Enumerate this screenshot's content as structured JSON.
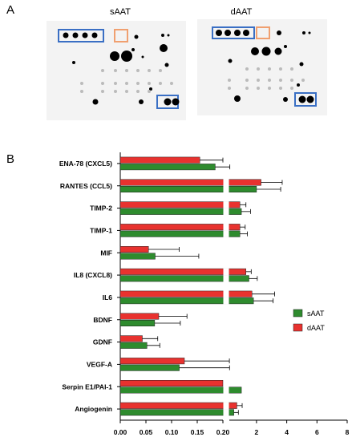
{
  "panel_a_label": "A",
  "panel_b_label": "B",
  "blots": {
    "left_title": "sAAT",
    "right_title": "dAAT",
    "highlight_colors": {
      "blue": "#3a6fc4",
      "orange": "#f0a070"
    }
  },
  "chart_data": {
    "type": "bar",
    "orientation": "horizontal",
    "categories": [
      "ENA-78 (CXCL5)",
      "RANTES (CCL5)",
      "TIMP-2",
      "TIMP-1",
      "MIF",
      "IL8 (CXCL8)",
      "IL6",
      "BDNF",
      "GDNF",
      "VEGF-A",
      "Serpin E1/PAI-1",
      "Angiogenin"
    ],
    "series": [
      {
        "name": "dAAT",
        "color": "#e8322f",
        "values": [
          0.155,
          2.3,
          0.9,
          0.9,
          0.055,
          1.3,
          1.7,
          0.075,
          0.043,
          0.125,
          0.2,
          0.7
        ],
        "errors": [
          0.045,
          1.4,
          0.4,
          0.35,
          0.06,
          0.35,
          1.5,
          0.055,
          0.03,
          0.08,
          0.0,
          0.35
        ]
      },
      {
        "name": "sAAT",
        "color": "#2e8b2e",
        "values": [
          0.185,
          2.0,
          1.0,
          0.9,
          0.068,
          1.5,
          1.8,
          0.067,
          0.052,
          0.115,
          1.0,
          0.5
        ],
        "errors": [
          0.05,
          1.6,
          0.6,
          0.5,
          0.085,
          0.55,
          1.3,
          0.05,
          0.025,
          0.1,
          0.0,
          0.3
        ]
      }
    ],
    "x_axis": {
      "segments": [
        {
          "range": [
            0,
            0.2
          ],
          "ticks": [
            "0.00",
            "0.05",
            "0.10",
            "0.15",
            "0.20"
          ]
        },
        {
          "range": [
            0.2,
            8
          ],
          "ticks": [
            "2",
            "4",
            "6",
            "8"
          ]
        }
      ]
    },
    "legend": {
      "position": "right",
      "entries": [
        "sAAT",
        "dAAT"
      ]
    },
    "grid": false
  }
}
